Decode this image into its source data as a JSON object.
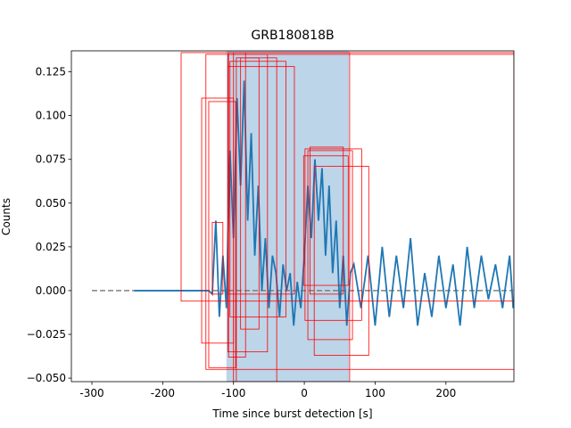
{
  "chart_data": {
    "type": "line",
    "title": "GRB180818B",
    "x_label": "Time since burst detection [s]",
    "y_label": "Counts",
    "x": [
      -240,
      -200,
      -160,
      -135,
      -130,
      -125,
      -120,
      -115,
      -110,
      -105,
      -100,
      -95,
      -90,
      -85,
      -80,
      -75,
      -70,
      -65,
      -60,
      -55,
      -50,
      -45,
      -40,
      -35,
      -30,
      -25,
      -20,
      -15,
      -10,
      -5,
      0,
      5,
      10,
      15,
      20,
      25,
      30,
      35,
      40,
      45,
      50,
      55,
      60,
      65,
      70,
      80,
      90,
      100,
      110,
      120,
      130,
      140,
      150,
      160,
      170,
      180,
      190,
      200,
      210,
      220,
      230,
      240,
      250,
      260,
      270,
      280,
      290,
      295
    ],
    "values": [
      0,
      0,
      0,
      0,
      -0.002,
      0.04,
      -0.015,
      0.02,
      -0.01,
      0.08,
      0.03,
      0.11,
      0.06,
      0.12,
      0.04,
      0.09,
      0.02,
      0.06,
      0.0,
      0.03,
      -0.01,
      0.02,
      0.01,
      -0.015,
      0.015,
      0.0,
      0.01,
      -0.02,
      0.005,
      -0.01,
      0.02,
      0.06,
      0.03,
      0.075,
      0.04,
      0.07,
      0.02,
      0.06,
      0.01,
      0.04,
      -0.01,
      0.02,
      -0.02,
      0.01,
      0.015,
      -0.01,
      0.02,
      -0.02,
      0.025,
      -0.015,
      0.02,
      -0.01,
      0.03,
      -0.02,
      0.01,
      -0.015,
      0.02,
      -0.01,
      0.015,
      -0.02,
      0.025,
      -0.01,
      0.02,
      -0.005,
      0.015,
      -0.01,
      0.02,
      -0.01
    ],
    "color": "#1f77b4",
    "baseline_x": [
      -300,
      295
    ],
    "baseline_y": 0,
    "baseline_color": "#808080",
    "span": [
      -110,
      63
    ],
    "span_color": "#bcd5e9",
    "boxes": {
      "color": "#ff0000",
      "x0": [
        -174,
        -139,
        -145,
        -135,
        -108,
        -105,
        -96,
        -100,
        5,
        1,
        14,
        8,
        -130,
        -108,
        -1,
        -107,
        -90
      ],
      "x1": [
        296,
        301,
        -100,
        -97,
        -52,
        -26,
        -39,
        64,
        68,
        81,
        91,
        55,
        -115,
        -14,
        62,
        -83,
        -64
      ],
      "y0": [
        -0.006,
        -0.045,
        -0.03,
        -0.044,
        -0.035,
        -0.015,
        -0.052,
        -0.052,
        -0.028,
        -0.017,
        -0.037,
        -0.002,
        -0.002,
        -0.002,
        0.003,
        -0.038,
        -0.022
      ],
      "y1": [
        0.136,
        0.135,
        0.11,
        0.108,
        0.135,
        0.131,
        0.133,
        0.136,
        0.08,
        0.081,
        0.071,
        0.082,
        0.039,
        0.128,
        0.077,
        0.136,
        0.133
      ]
    },
    "xlim": [
      -329,
      296
    ],
    "ylim": [
      -0.052,
      0.137
    ],
    "xticks": [
      -300,
      -200,
      -100,
      0,
      100,
      200
    ],
    "yticks": [
      {
        "value": -0.05,
        "label": "−0.050"
      },
      {
        "value": -0.025,
        "label": "−0.025"
      },
      {
        "value": 0,
        "label": "0.000"
      },
      {
        "value": 0.025,
        "label": "0.025"
      },
      {
        "value": 0.05,
        "label": "0.050"
      },
      {
        "value": 0.075,
        "label": "0.075"
      },
      {
        "value": 0.1,
        "label": "0.100"
      },
      {
        "value": 0.125,
        "label": "0.125"
      }
    ]
  }
}
